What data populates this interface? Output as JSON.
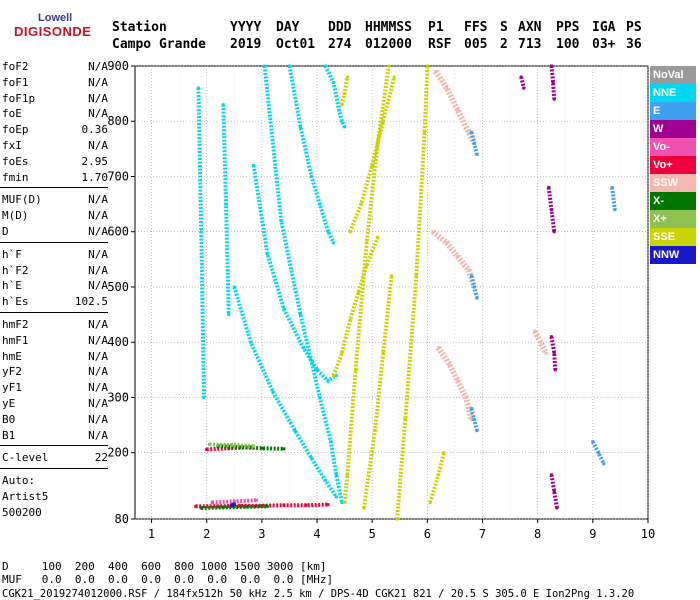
{
  "logo": {
    "top": "Lowell",
    "bottom": "DIGISONDE"
  },
  "header": {
    "labels": [
      "Station",
      "YYYY",
      "DAY",
      "DDD",
      "HHMMSS",
      "P1",
      "FFS",
      "S",
      "AXN",
      "PPS",
      "IGA",
      "PS"
    ],
    "values": [
      "Campo Grande",
      "2019",
      "Oct01",
      "274",
      "012000",
      "RSF",
      "005",
      "2",
      "713",
      "100",
      "03+",
      "36"
    ]
  },
  "params": {
    "g1": [
      [
        "foF2",
        "N/A"
      ],
      [
        "foF1",
        "N/A"
      ],
      [
        "foF1p",
        "N/A"
      ],
      [
        "foE",
        "N/A"
      ],
      [
        "foEp",
        "0.36"
      ],
      [
        "fxI",
        "N/A"
      ],
      [
        "foEs",
        "2.95"
      ],
      [
        "fmin",
        "1.70"
      ]
    ],
    "g2": [
      [
        "MUF(D)",
        "N/A"
      ],
      [
        "M(D)",
        "N/A"
      ],
      [
        "D",
        "N/A"
      ]
    ],
    "g3": [
      [
        "h`F",
        "N/A"
      ],
      [
        "h`F2",
        "N/A"
      ],
      [
        "h`E",
        "N/A"
      ],
      [
        "h`Es",
        "102.5"
      ]
    ],
    "g4": [
      [
        "hmF2",
        "N/A"
      ],
      [
        "hmF1",
        "N/A"
      ],
      [
        "hmE",
        "N/A"
      ],
      [
        "yF2",
        "N/A"
      ],
      [
        "yF1",
        "N/A"
      ],
      [
        "yE",
        "N/A"
      ],
      [
        "B0",
        "N/A"
      ],
      [
        "B1",
        "N/A"
      ]
    ],
    "g5": [
      [
        "C-level",
        "22"
      ]
    ],
    "auto": [
      "Auto:",
      "Artist5",
      "500200"
    ]
  },
  "chart_data": {
    "type": "scatter",
    "title": "",
    "xlabel": "",
    "ylabel": "",
    "xlim": [
      0.7,
      10.0
    ],
    "ylim": [
      80,
      900
    ],
    "x_ticks": [
      "1",
      "2",
      "3",
      "4",
      "5",
      "6",
      "7",
      "8",
      "9",
      "10"
    ],
    "y_ticks": [
      "80",
      "200",
      "300",
      "400",
      "500",
      "600",
      "700",
      "800",
      "900"
    ],
    "series": [
      {
        "name": "NNE",
        "color": "#00d8f0",
        "traces": [
          {
            "x": [
              3.05,
              3.35,
              3.7,
              4.05,
              4.25,
              4.35,
              4.45
            ],
            "y": [
              900,
              620,
              450,
              300,
              220,
              160,
              110
            ]
          },
          {
            "x": [
              3.5,
              3.7,
              3.9,
              4.05,
              4.2,
              4.3
            ],
            "y": [
              900,
              790,
              700,
              650,
              600,
              580
            ]
          },
          {
            "x": [
              2.85,
              3.1,
              3.4,
              3.75,
              4.0,
              4.2,
              4.35
            ],
            "y": [
              720,
              560,
              460,
              390,
              350,
              330,
              340
            ]
          },
          {
            "x": [
              4.15,
              4.3,
              4.4,
              4.45,
              4.5
            ],
            "y": [
              900,
              870,
              820,
              800,
              790
            ]
          },
          {
            "x": [
              2.5,
              2.8,
              3.2,
              3.6,
              3.9,
              4.15,
              4.35
            ],
            "y": [
              500,
              400,
              310,
              240,
              190,
              150,
              120
            ]
          },
          {
            "x": [
              2.3,
              2.35,
              2.4
            ],
            "y": [
              830,
              650,
              450
            ]
          },
          {
            "x": [
              1.85,
              1.9,
              1.95
            ],
            "y": [
              860,
              600,
              300
            ]
          }
        ]
      },
      {
        "name": "SSE",
        "color": "#c8d400",
        "traces": [
          {
            "x": [
              4.5,
              4.55,
              4.7,
              4.9,
              5.1,
              5.3
            ],
            "y": [
              110,
              160,
              350,
              580,
              760,
              900
            ]
          },
          {
            "x": [
              4.6,
              4.8,
              5.0,
              5.2,
              5.4
            ],
            "y": [
              600,
              650,
              720,
              800,
              880
            ]
          },
          {
            "x": [
              4.3,
              4.45,
              4.6,
              4.75,
              4.9,
              5.1
            ],
            "y": [
              340,
              380,
              440,
              490,
              540,
              590
            ]
          },
          {
            "x": [
              4.85,
              5.05,
              5.2,
              5.35
            ],
            "y": [
              100,
              240,
              380,
              520
            ]
          },
          {
            "x": [
              5.45,
              5.6,
              5.8,
              5.95,
              6.0
            ],
            "y": [
              80,
              260,
              520,
              780,
              900
            ]
          },
          {
            "x": [
              6.05,
              6.2,
              6.3
            ],
            "y": [
              110,
              160,
              200
            ]
          },
          {
            "x": [
              4.45,
              4.5,
              4.55
            ],
            "y": [
              830,
              850,
              880
            ]
          }
        ]
      },
      {
        "name": "SSW",
        "color": "#f5b8b0",
        "traces": [
          {
            "x": [
              6.15,
              6.35,
              6.55,
              6.75,
              6.85
            ],
            "y": [
              890,
              860,
              820,
              780,
              760
            ]
          },
          {
            "x": [
              6.1,
              6.35,
              6.55,
              6.75,
              6.85
            ],
            "y": [
              600,
              580,
              555,
              530,
              500
            ]
          },
          {
            "x": [
              6.2,
              6.4,
              6.55,
              6.7,
              6.8
            ],
            "y": [
              390,
              360,
              330,
              300,
              260
            ]
          },
          {
            "x": [
              7.95,
              8.05,
              8.15
            ],
            "y": [
              420,
              400,
              380
            ]
          }
        ]
      },
      {
        "name": "W",
        "color": "#a00090",
        "traces": [
          {
            "x": [
              8.25,
              8.28,
              8.3
            ],
            "y": [
              900,
              870,
              840
            ]
          },
          {
            "x": [
              8.2,
              8.25,
              8.3
            ],
            "y": [
              680,
              640,
              600
            ]
          },
          {
            "x": [
              8.25,
              8.3,
              8.32
            ],
            "y": [
              410,
              380,
              350
            ]
          },
          {
            "x": [
              8.25,
              8.3,
              8.35
            ],
            "y": [
              160,
              130,
              100
            ]
          },
          {
            "x": [
              7.7,
              7.75
            ],
            "y": [
              880,
              860
            ]
          }
        ]
      },
      {
        "name": "E",
        "color": "#40a0f0",
        "traces": [
          {
            "x": [
              6.8,
              6.85,
              6.9
            ],
            "y": [
              780,
              760,
              740
            ]
          },
          {
            "x": [
              6.8,
              6.85,
              6.9
            ],
            "y": [
              520,
              500,
              480
            ]
          },
          {
            "x": [
              6.8,
              6.85,
              6.9
            ],
            "y": [
              280,
              260,
              240
            ]
          },
          {
            "x": [
              9.0,
              9.1,
              9.2
            ],
            "y": [
              220,
              200,
              180
            ]
          },
          {
            "x": [
              9.35,
              9.4
            ],
            "y": [
              680,
              640
            ]
          }
        ]
      },
      {
        "name": "Vo+",
        "color": "#f0003c",
        "traces": [
          {
            "x": [
              1.8,
              2.2,
              2.6,
              3.0,
              3.4,
              3.8,
              4.2
            ],
            "y": [
              103,
              103,
              104,
              104,
              105,
              105,
              106
            ]
          },
          {
            "x": [
              2.0,
              2.4,
              2.8
            ],
            "y": [
              206,
              208,
              210
            ]
          }
        ]
      },
      {
        "name": "X-",
        "color": "#007800",
        "traces": [
          {
            "x": [
              2.2,
              2.6,
              3.0,
              3.4
            ],
            "y": [
              212,
              210,
              208,
              207
            ]
          },
          {
            "x": [
              1.9,
              2.3,
              2.7,
              3.1
            ],
            "y": [
              100,
              101,
              102,
              103
            ]
          }
        ]
      },
      {
        "name": "X+",
        "color": "#90c050",
        "traces": [
          {
            "x": [
              2.05,
              2.45,
              2.85
            ],
            "y": [
              215,
              214,
              212
            ]
          }
        ]
      },
      {
        "name": "Vo-",
        "color": "#f050b0",
        "traces": [
          {
            "x": [
              2.1,
              2.5,
              2.9
            ],
            "y": [
              110,
              112,
              114
            ]
          }
        ]
      },
      {
        "name": "NNW",
        "color": "#1818c8",
        "traces": [
          {
            "x": [
              2.45,
              2.5
            ],
            "y": [
              105,
              107
            ]
          }
        ]
      }
    ],
    "legend_position": "right",
    "legend": [
      {
        "label": "NoVal",
        "color": "#9a9a9a"
      },
      {
        "label": "NNE",
        "color": "#00d8f0"
      },
      {
        "label": "E",
        "color": "#40a0f0"
      },
      {
        "label": "W",
        "color": "#a00090"
      },
      {
        "label": "Vo-",
        "color": "#f050b0"
      },
      {
        "label": "Vo+",
        "color": "#f0003c"
      },
      {
        "label": "SSW",
        "color": "#f5b8b0"
      },
      {
        "label": "X-",
        "color": "#007800"
      },
      {
        "label": "X+",
        "color": "#90c050"
      },
      {
        "label": "SSE",
        "color": "#c8d400"
      },
      {
        "label": "NNW",
        "color": "#1818c8"
      }
    ]
  },
  "footer": {
    "line1": "D     100  200  400  600  800 1000 1500 3000 [km]",
    "line2": "MUF   0.0  0.0  0.0  0.0  0.0  0.0  0.0  0.0 [MHz]",
    "line3": "CGK21_2019274012000.RSF / 184fx512h 50 kHz 2.5 km / DPS-4D CGK21 821 / 20.5 S 305.0 E Ion2Png 1.3.20"
  }
}
